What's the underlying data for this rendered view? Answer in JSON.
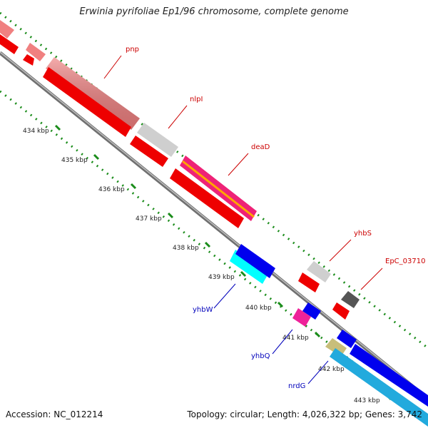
{
  "title": "Erwinia pyrifoliae Ep1/96 chromosome, complete genome",
  "accession": "Accession: NC_012214",
  "stats": "Topology: circular; Length: 4,026,322 bp; Genes: 3,742",
  "colors": {
    "forward_label": "#cc0000",
    "reverse_label": "#0000bb",
    "backbone": "#808080",
    "ticks": "#1a8c1a"
  },
  "ticks": [
    "434 kbp",
    "435 kbp",
    "436 kbp",
    "437 kbp",
    "438 kbp",
    "439 kbp",
    "440 kbp",
    "441 kbp",
    "442 kbp",
    "443 kbp"
  ],
  "gene_labels": [
    {
      "text": "pnp",
      "color": "#cc0000"
    },
    {
      "text": "nlpI",
      "color": "#cc0000"
    },
    {
      "text": "deaD",
      "color": "#cc0000"
    },
    {
      "text": "yhbS",
      "color": "#cc0000"
    },
    {
      "text": "EpC_03710",
      "color": "#cc0000"
    },
    {
      "text": "yhbW",
      "color": "#0000bb"
    },
    {
      "text": "yhbQ",
      "color": "#0000bb"
    },
    {
      "text": "nrdG",
      "color": "#0000bb"
    }
  ]
}
